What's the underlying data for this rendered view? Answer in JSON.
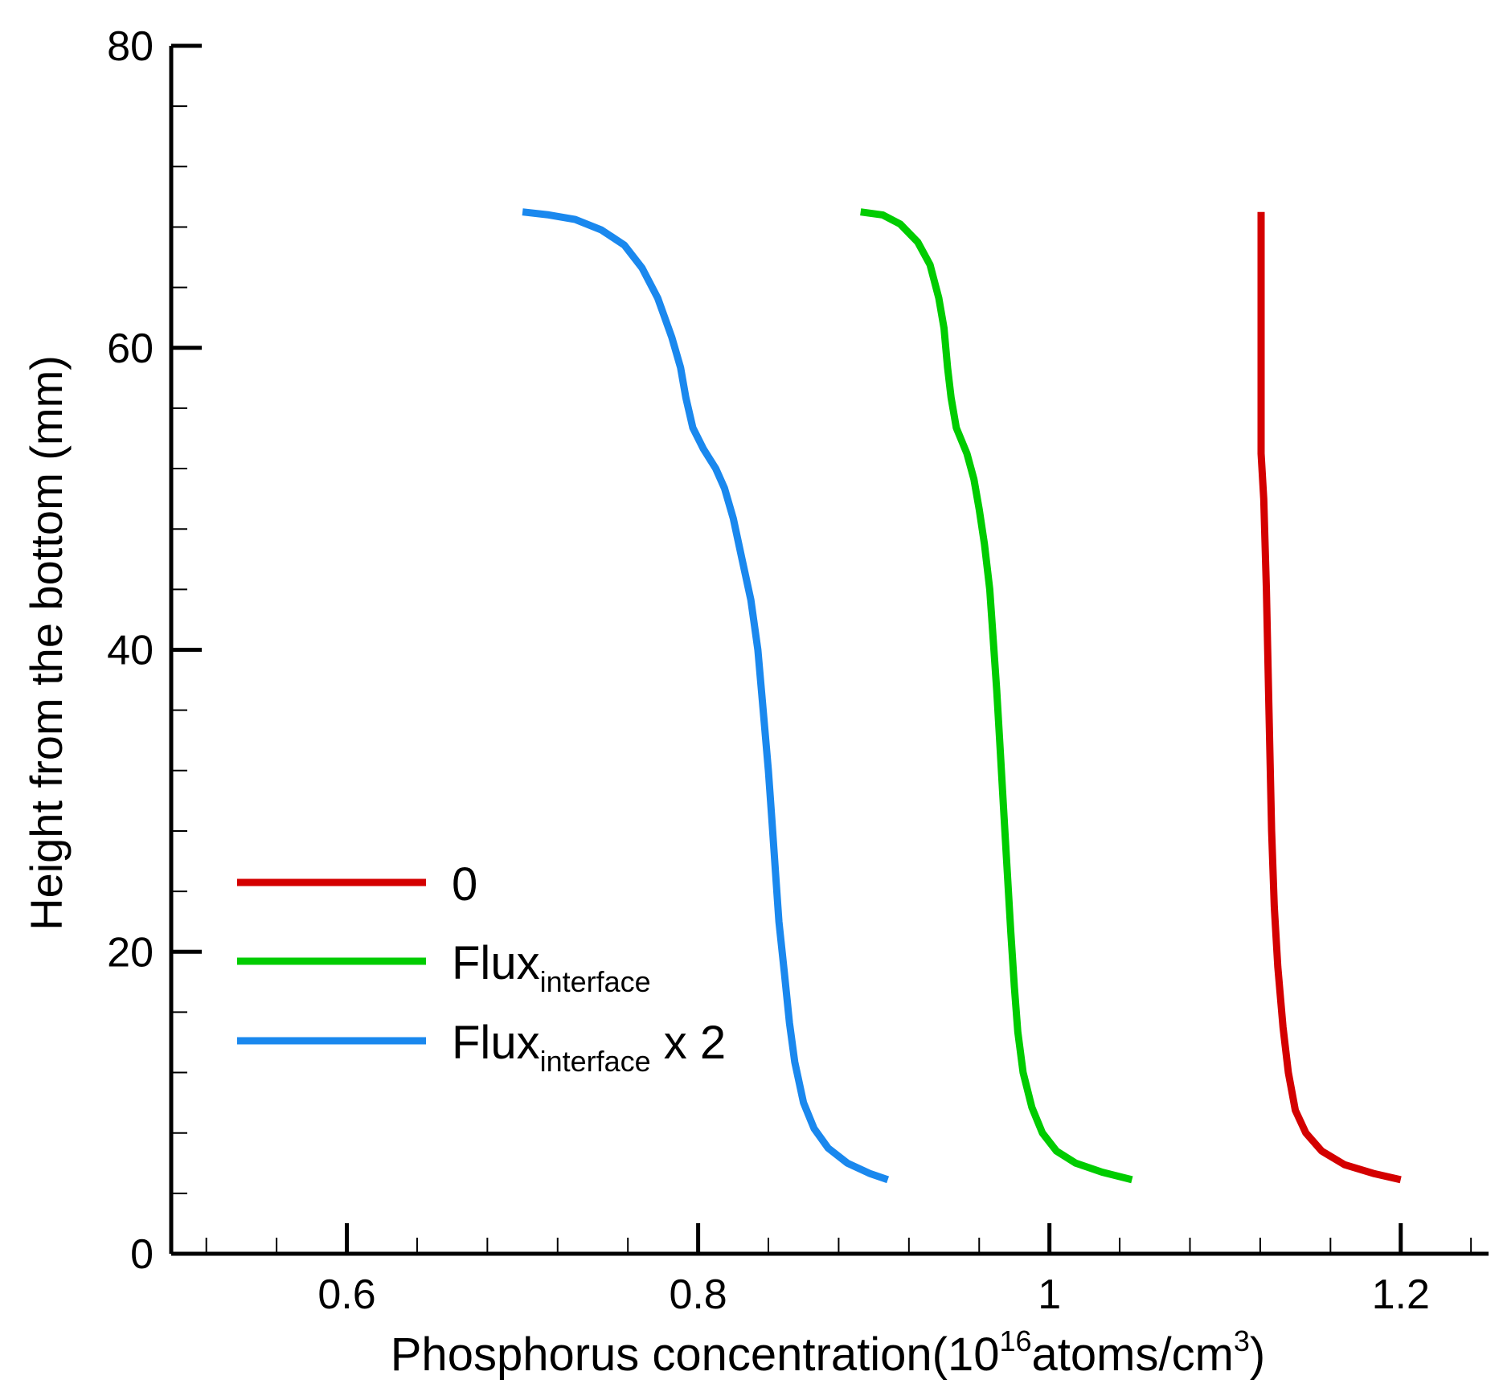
{
  "chart_data": {
    "type": "line",
    "title": "",
    "xlabel": {
      "main": "Phosphorus concentration(10",
      "sup": "16",
      "mid": "atoms/cm",
      "sup2": "3",
      "end": ")"
    },
    "ylabel": "Height from the bottom (mm)",
    "xlim": [
      0.5,
      1.25
    ],
    "ylim": [
      0,
      80
    ],
    "xticks": [
      0.6,
      0.8,
      1.0,
      1.2
    ],
    "xtick_labels": [
      "0.6",
      "0.8",
      "1",
      "1.2"
    ],
    "xminor_step": 0.04,
    "yticks": [
      0,
      20,
      40,
      60,
      80
    ],
    "ytick_labels": [
      "0",
      "20",
      "40",
      "60",
      "80"
    ],
    "yminor_step": 4,
    "grid": false,
    "legend_position": "lower-left",
    "series": [
      {
        "name": "0",
        "label_main": "0",
        "label_sub": "",
        "label_suffix": "",
        "color": "#d40000",
        "points": [
          [
            1.1205,
            69
          ],
          [
            1.1205,
            60
          ],
          [
            1.1205,
            53
          ],
          [
            1.122,
            50
          ],
          [
            1.1235,
            44
          ],
          [
            1.125,
            36
          ],
          [
            1.1265,
            28
          ],
          [
            1.128,
            23
          ],
          [
            1.13,
            19
          ],
          [
            1.133,
            15
          ],
          [
            1.136,
            12
          ],
          [
            1.14,
            9.5
          ],
          [
            1.146,
            8.0
          ],
          [
            1.155,
            6.8
          ],
          [
            1.168,
            5.9
          ],
          [
            1.185,
            5.3
          ],
          [
            1.2,
            4.9
          ]
        ]
      },
      {
        "name": "Flux interface",
        "label_main": "Flux",
        "label_sub": "interface",
        "label_suffix": "",
        "color": "#00cc00",
        "points": [
          [
            0.8925,
            69
          ],
          [
            0.905,
            68.8
          ],
          [
            0.915,
            68.2
          ],
          [
            0.925,
            67.0
          ],
          [
            0.932,
            65.5
          ],
          [
            0.937,
            63.3
          ],
          [
            0.94,
            61.3
          ],
          [
            0.942,
            58.7
          ],
          [
            0.944,
            56.7
          ],
          [
            0.947,
            54.7
          ],
          [
            0.953,
            53.0
          ],
          [
            0.957,
            51.3
          ],
          [
            0.96,
            49.3
          ],
          [
            0.963,
            47.0
          ],
          [
            0.966,
            44.0
          ],
          [
            0.968,
            40.7
          ],
          [
            0.97,
            37.3
          ],
          [
            0.972,
            33.3
          ],
          [
            0.974,
            29.3
          ],
          [
            0.976,
            25.3
          ],
          [
            0.978,
            21.3
          ],
          [
            0.98,
            17.7
          ],
          [
            0.982,
            14.7
          ],
          [
            0.985,
            12.0
          ],
          [
            0.99,
            9.7
          ],
          [
            0.996,
            8.0
          ],
          [
            1.004,
            6.8
          ],
          [
            1.015,
            6.0
          ],
          [
            1.03,
            5.4
          ],
          [
            1.047,
            4.9
          ]
        ]
      },
      {
        "name": "Flux interface x 2",
        "label_main": "Flux",
        "label_sub": "interface",
        "label_suffix": " x 2",
        "color": "#1a88ee",
        "points": [
          [
            0.7,
            69
          ],
          [
            0.715,
            68.8
          ],
          [
            0.73,
            68.5
          ],
          [
            0.745,
            67.8
          ],
          [
            0.758,
            66.8
          ],
          [
            0.768,
            65.3
          ],
          [
            0.777,
            63.3
          ],
          [
            0.785,
            60.7
          ],
          [
            0.79,
            58.7
          ],
          [
            0.793,
            56.7
          ],
          [
            0.797,
            54.7
          ],
          [
            0.803,
            53.3
          ],
          [
            0.81,
            52.0
          ],
          [
            0.815,
            50.7
          ],
          [
            0.82,
            48.7
          ],
          [
            0.825,
            46.0
          ],
          [
            0.83,
            43.3
          ],
          [
            0.834,
            40.0
          ],
          [
            0.837,
            36.0
          ],
          [
            0.84,
            32.0
          ],
          [
            0.842,
            28.7
          ],
          [
            0.844,
            25.3
          ],
          [
            0.846,
            22.0
          ],
          [
            0.849,
            18.7
          ],
          [
            0.852,
            15.3
          ],
          [
            0.855,
            12.7
          ],
          [
            0.86,
            10.0
          ],
          [
            0.866,
            8.3
          ],
          [
            0.874,
            7.0
          ],
          [
            0.885,
            6.0
          ],
          [
            0.898,
            5.3
          ],
          [
            0.908,
            4.9
          ]
        ]
      }
    ]
  }
}
